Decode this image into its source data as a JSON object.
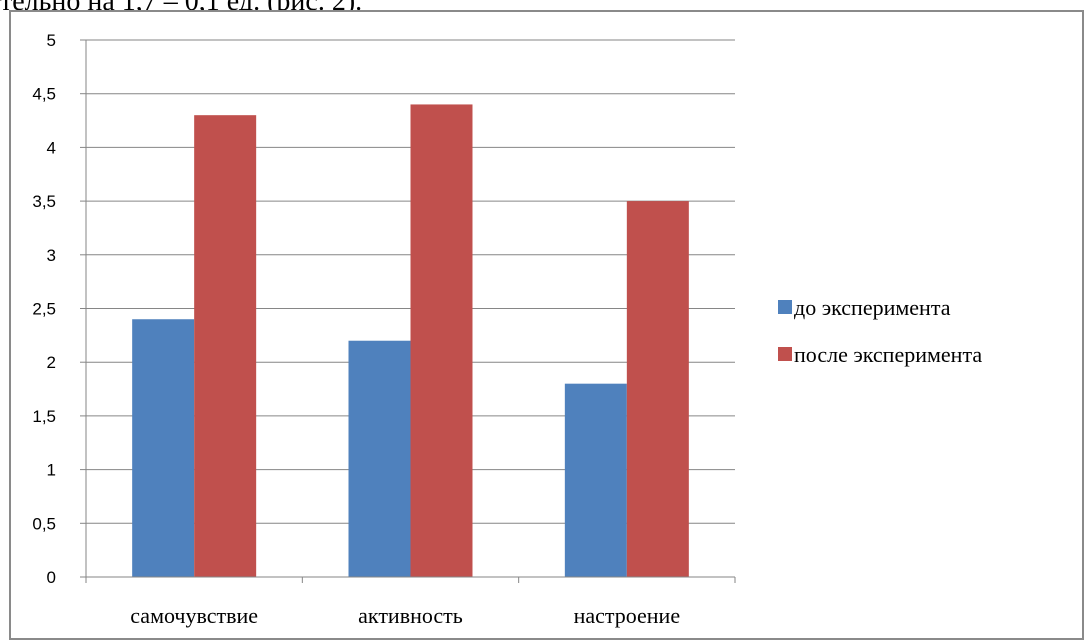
{
  "page": {
    "top_text": "тельно на 1,7 – 0,1 ед. (рис. 2)."
  },
  "chart_data": {
    "type": "bar",
    "title": "",
    "xlabel": "",
    "ylabel": "",
    "categories": [
      "самочувствие",
      "активность",
      "настроение"
    ],
    "ylim": [
      0,
      5
    ],
    "yticks": [
      0,
      0.5,
      1,
      1.5,
      2,
      2.5,
      3,
      3.5,
      4,
      4.5,
      5
    ],
    "ytick_labels": [
      "0",
      "0,5",
      "1",
      "1,5",
      "2",
      "2,5",
      "3",
      "3,5",
      "4",
      "4,5",
      "5"
    ],
    "grid": true,
    "legend_position": "right",
    "series": [
      {
        "name": "до эксперимента",
        "values": [
          2.4,
          2.2,
          1.8
        ],
        "color": "#4F81BD"
      },
      {
        "name": "после эксперимента",
        "values": [
          4.3,
          4.4,
          3.5
        ],
        "color": "#C0504D"
      }
    ]
  }
}
